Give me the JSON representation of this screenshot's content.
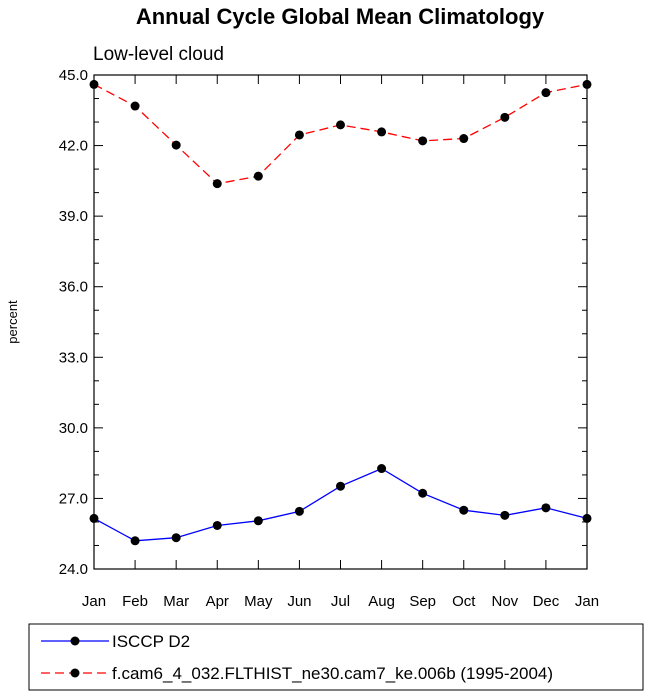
{
  "chart_data": {
    "type": "line",
    "title": "Annual Cycle Global Mean Climatology",
    "subtitle": "Low-level cloud",
    "xlabel": "",
    "ylabel": "percent",
    "categories": [
      "Jan",
      "Feb",
      "Mar",
      "Apr",
      "May",
      "Jun",
      "Jul",
      "Aug",
      "Sep",
      "Oct",
      "Nov",
      "Dec",
      "Jan"
    ],
    "ylim": [
      24.0,
      45.0
    ],
    "yticks": [
      "24.0",
      "27.0",
      "30.0",
      "33.0",
      "36.0",
      "39.0",
      "42.0",
      "45.0"
    ],
    "series": [
      {
        "name": "ISCCP D2",
        "color": "#0000ff",
        "dash": "solid",
        "values": [
          26.15,
          25.2,
          25.33,
          25.85,
          26.05,
          26.45,
          27.52,
          28.27,
          27.22,
          26.5,
          26.28,
          26.6,
          26.15
        ]
      },
      {
        "name": "f.cam6_4_032.FLTHIST_ne30.cam7_ke.006b (1995-2004)",
        "color": "#ff0000",
        "dash": "dashed",
        "values": [
          44.6,
          43.68,
          42.02,
          40.38,
          40.7,
          42.45,
          42.88,
          42.58,
          42.2,
          42.3,
          43.2,
          44.25,
          44.6
        ]
      }
    ]
  }
}
